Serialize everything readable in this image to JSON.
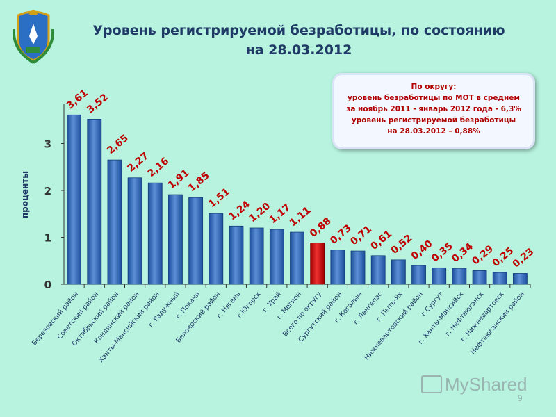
{
  "title": {
    "line1": "Уровень регистрируемой безработицы, по состоянию",
    "line2": "на 28.03.2012"
  },
  "callout": {
    "lines": [
      "По округу:",
      "уровень безработицы по МОТ в среднем",
      "за ноябрь 2011 - январь 2012 года - 6,3%",
      "уровень регистрируемой безработицы",
      "на 28.03.2012 – 0,88%"
    ]
  },
  "watermark": {
    "text": "MyShared"
  },
  "page_number": "9",
  "colors": {
    "bar": "#2f63b0",
    "highlight_bar": "#cc1111",
    "label": "#c00000",
    "background": "#b7f3df"
  },
  "chart_data": {
    "type": "bar",
    "ylabel": "проценты",
    "ylim": [
      0,
      3.7
    ],
    "yticks": [
      "0",
      "1",
      "2",
      "3"
    ],
    "categories": [
      "Березовский район",
      "Советский район",
      "Октябрьский район",
      "Кондинский район",
      "Ханты-Мансийский район",
      "г. Радужный",
      "г. Покачи",
      "Белоярский район",
      "г. Нягань",
      "г.Югорск",
      "г. Урай",
      "г. Мегион",
      "Всего по округу",
      "Сургутский район",
      "г. Когалым",
      "г. Лангепас",
      "г. Пыть-Ях",
      "Нижневартовский район",
      "г.Сургут",
      "г. Ханты-Мансийск",
      "г. Нефтеюганск",
      "г. Нижневартовск",
      "Нефтеюганский район"
    ],
    "values": [
      3.61,
      3.52,
      2.65,
      2.27,
      2.16,
      1.91,
      1.85,
      1.51,
      1.24,
      1.2,
      1.17,
      1.11,
      0.88,
      0.73,
      0.71,
      0.61,
      0.52,
      0.4,
      0.35,
      0.34,
      0.29,
      0.25,
      0.23
    ],
    "value_labels": [
      "3,61",
      "3,52",
      "2,65",
      "2,27",
      "2,16",
      "1,91",
      "1,85",
      "1,51",
      "1,24",
      "1,20",
      "1,17",
      "1,11",
      "0,88",
      "0,73",
      "0,71",
      "0,61",
      "0,52",
      "0,40",
      "0,35",
      "0,34",
      "0,29",
      "0,25",
      "0,23"
    ],
    "highlight_category": "Всего по округу",
    "grid": false,
    "legend": "none"
  }
}
